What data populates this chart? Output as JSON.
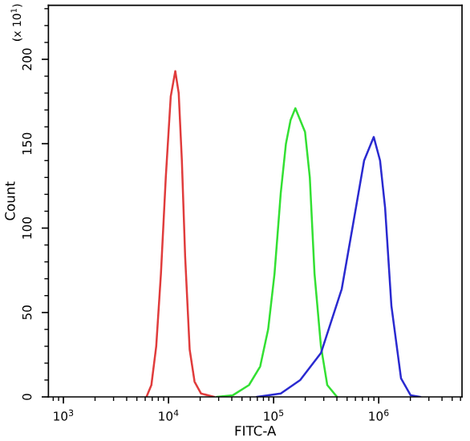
{
  "chart_data": {
    "type": "line",
    "xlabel": "FITC-A",
    "ylabel": "Count",
    "annotations": [
      "(x 10$^{1}$)"
    ],
    "log": "x",
    "grid": false,
    "marker": "none",
    "line_style": "solid",
    "xlim": [
      720,
      6200000
    ],
    "ylim": [
      0,
      232
    ],
    "xticks": [
      {
        "value": 1000,
        "label": "10$^{3}$"
      },
      {
        "value": 10000,
        "label": "10$^{4}$"
      },
      {
        "value": 100000,
        "label": "10$^{5}$"
      },
      {
        "value": 1000000,
        "label": "10$^{6}$"
      }
    ],
    "yticks": [
      0,
      50,
      100,
      150,
      200
    ],
    "series": [
      {
        "color": "#e03c3c",
        "x": [
          6170,
          6870,
          7640,
          8470,
          9420,
          10500,
          11600,
          12500,
          13400,
          14400,
          15900,
          17700,
          20400,
          27000
        ],
        "values": [
          0,
          7,
          30,
          73,
          130,
          178,
          193,
          180,
          140,
          83,
          28,
          9,
          2,
          0
        ]
      },
      {
        "color": "#33e033",
        "x": [
          28900,
          41000,
          58300,
          74500,
          88700,
          102000,
          117000,
          131000,
          145000,
          161000,
          179000,
          199000,
          221000,
          245000,
          282000,
          324000,
          401000
        ],
        "values": [
          0,
          1,
          7,
          18,
          40,
          73,
          121,
          150,
          164,
          171,
          164,
          157,
          130,
          73,
          30,
          7,
          0
        ]
      },
      {
        "color": "#2a2ad0",
        "x": [
          69500,
          117000,
          179000,
          282000,
          445000,
          569000,
          726000,
          897000,
          1030000,
          1150000,
          1320000,
          1630000,
          2010000,
          2480000
        ],
        "values": [
          0,
          2,
          10,
          26,
          64,
          102,
          140,
          154,
          140,
          112,
          54,
          11,
          1,
          0
        ]
      }
    ]
  }
}
